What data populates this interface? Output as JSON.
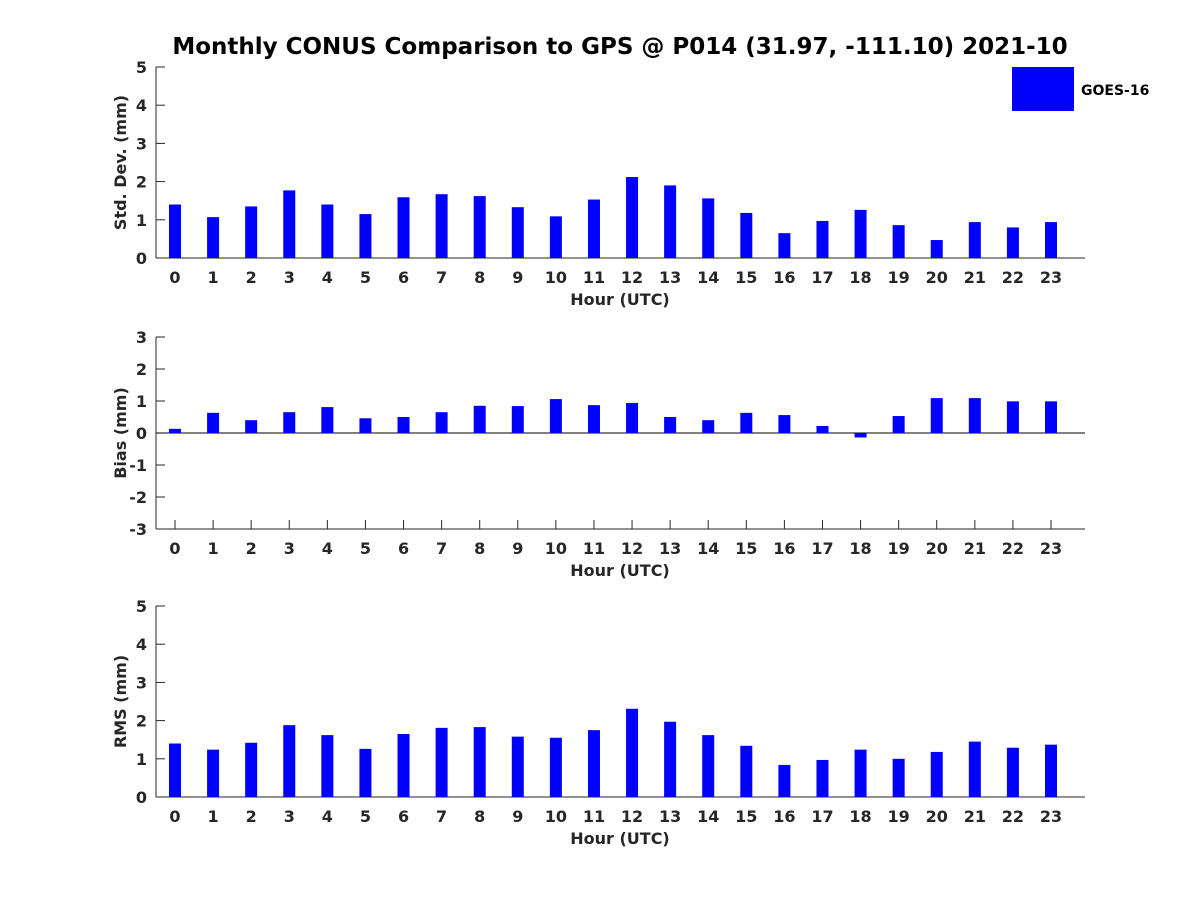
{
  "figure": {
    "title": "Monthly CONUS Comparison to GPS @ P014 (31.97, -111.10) 2021-10",
    "legend": {
      "label": "GOES-16",
      "color": "#0000ff",
      "placement": "top-right"
    }
  },
  "chart_data": [
    {
      "type": "bar",
      "title": "",
      "xlabel": "Hour (UTC)",
      "ylabel": "Std. Dev. (mm)",
      "ylim": [
        0,
        5
      ],
      "yticks": [
        0,
        1,
        2,
        3,
        4,
        5
      ],
      "categories": [
        "0",
        "1",
        "2",
        "3",
        "4",
        "5",
        "6",
        "7",
        "8",
        "9",
        "10",
        "11",
        "12",
        "13",
        "14",
        "15",
        "16",
        "17",
        "18",
        "19",
        "20",
        "21",
        "22",
        "23"
      ],
      "series": [
        {
          "name": "GOES-16",
          "color": "#0000ff",
          "values": [
            1.4,
            1.07,
            1.35,
            1.77,
            1.4,
            1.15,
            1.59,
            1.67,
            1.62,
            1.33,
            1.09,
            1.53,
            2.12,
            1.9,
            1.56,
            1.18,
            0.65,
            0.97,
            1.26,
            0.86,
            0.47,
            0.94,
            0.8,
            0.94
          ]
        }
      ],
      "grid": false
    },
    {
      "type": "bar",
      "title": "",
      "xlabel": "Hour (UTC)",
      "ylabel": "Bias (mm)",
      "ylim": [
        -3,
        3
      ],
      "yticks": [
        -3,
        -2,
        -1,
        0,
        1,
        2,
        3
      ],
      "categories": [
        "0",
        "1",
        "2",
        "3",
        "4",
        "5",
        "6",
        "7",
        "8",
        "9",
        "10",
        "11",
        "12",
        "13",
        "14",
        "15",
        "16",
        "17",
        "18",
        "19",
        "20",
        "21",
        "22",
        "23"
      ],
      "series": [
        {
          "name": "GOES-16",
          "color": "#0000ff",
          "values": [
            0.13,
            0.63,
            0.4,
            0.65,
            0.81,
            0.46,
            0.5,
            0.65,
            0.85,
            0.84,
            1.06,
            0.87,
            0.94,
            0.5,
            0.4,
            0.63,
            0.56,
            0.22,
            -0.14,
            0.53,
            1.09,
            1.09,
            0.99,
            0.99
          ]
        }
      ],
      "zero_line": true,
      "grid": false
    },
    {
      "type": "bar",
      "title": "",
      "xlabel": "Hour (UTC)",
      "ylabel": "RMS (mm)",
      "ylim": [
        0,
        5
      ],
      "yticks": [
        0,
        1,
        2,
        3,
        4,
        5
      ],
      "categories": [
        "0",
        "1",
        "2",
        "3",
        "4",
        "5",
        "6",
        "7",
        "8",
        "9",
        "10",
        "11",
        "12",
        "13",
        "14",
        "15",
        "16",
        "17",
        "18",
        "19",
        "20",
        "21",
        "22",
        "23"
      ],
      "series": [
        {
          "name": "GOES-16",
          "color": "#0000ff",
          "values": [
            1.4,
            1.24,
            1.42,
            1.88,
            1.62,
            1.26,
            1.65,
            1.81,
            1.83,
            1.58,
            1.55,
            1.75,
            2.31,
            1.97,
            1.62,
            1.34,
            0.84,
            0.97,
            1.24,
            1.0,
            1.18,
            1.45,
            1.29,
            1.37
          ]
        }
      ],
      "grid": false
    }
  ]
}
